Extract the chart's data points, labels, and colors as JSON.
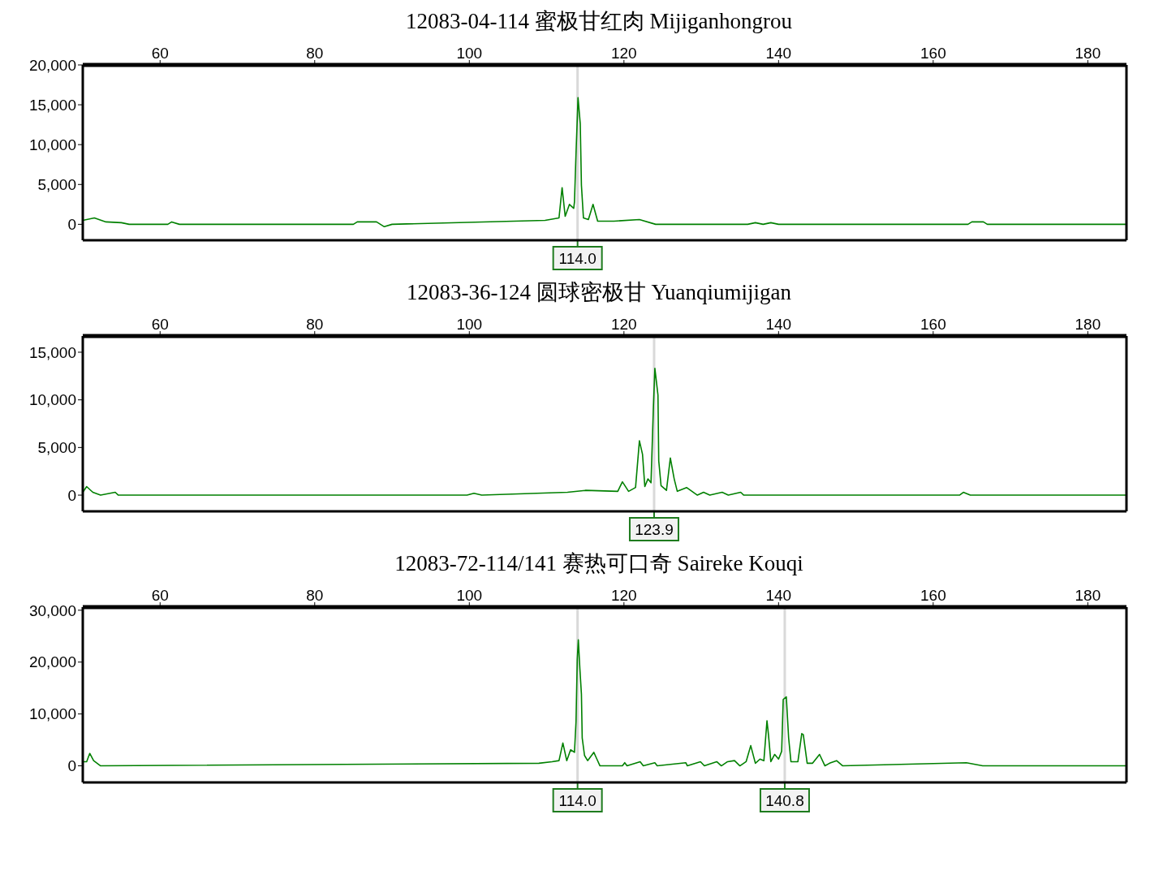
{
  "chart_data": [
    {
      "type": "line",
      "title": "12083-04-114 蜜极甘红肉  Mijiganhongrou",
      "x": [
        50,
        51.5,
        53,
        55,
        56,
        61,
        61.5,
        62.5,
        85,
        85.5,
        88,
        89,
        90,
        109.8,
        111.6,
        112.0,
        112.4,
        112.95,
        113.5,
        113.6,
        113.8,
        114.06,
        114.35,
        114.5,
        114.76,
        115.4,
        116.0,
        116.6,
        118.7,
        122.0,
        124.1,
        136,
        137,
        138,
        139,
        140,
        164.5,
        165,
        166.5,
        167,
        185
      ],
      "series": [
        {
          "color": "#008000",
          "values": [
            500,
            800,
            300,
            200,
            0,
            0,
            300,
            0,
            0,
            300,
            300,
            -300,
            0,
            500,
            800,
            4600,
            1000,
            2500,
            2000,
            2800,
            8900,
            15900,
            12600,
            4900,
            800,
            600,
            2500,
            400,
            400,
            600,
            0,
            0,
            200,
            0,
            200,
            0,
            0,
            300,
            300,
            0,
            0
          ]
        }
      ],
      "xlim": [
        50,
        185
      ],
      "xticks": [
        60,
        80,
        100,
        120,
        140,
        160,
        180
      ],
      "ylim": [
        -2000,
        20000
      ],
      "yticks": [
        {
          "value": 0,
          "label": "0"
        },
        {
          "value": 5000,
          "label": "5,000"
        },
        {
          "value": 10000,
          "label": "10,000"
        },
        {
          "value": 15000,
          "label": "15,000"
        },
        {
          "value": 20000,
          "label": "20,000"
        }
      ],
      "ref_lines": [
        {
          "axis": "x",
          "value": 114.0,
          "label": "114.0",
          "color": "#d9d9d9"
        }
      ]
    },
    {
      "type": "line",
      "title": "12083-36-124 圆球密极甘  Yuanqiumijigan",
      "x": [
        50,
        50.5,
        51.3,
        52.3,
        54.2,
        54.6,
        99.7,
        100.6,
        101.6,
        112.7,
        115.0,
        119.2,
        119.8,
        120.6,
        121.5,
        122.0,
        122.4,
        122.7,
        123.1,
        123.5,
        123.8,
        124.0,
        124.4,
        124.5,
        124.8,
        125.5,
        126.0,
        126.5,
        126.9,
        128.1,
        129.5,
        130.3,
        131.1,
        132.7,
        133.5,
        135.1,
        135.5,
        163.4,
        163.9,
        164.8,
        185
      ],
      "series": [
        {
          "color": "#008000",
          "values": [
            300,
            900,
            300,
            0,
            300,
            0,
            0,
            200,
            0,
            300,
            500,
            400,
            1400,
            400,
            800,
            5700,
            4300,
            900,
            1700,
            1300,
            9000,
            13300,
            10500,
            3600,
            1000,
            500,
            3900,
            1700,
            400,
            800,
            0,
            300,
            0,
            300,
            0,
            300,
            0,
            0,
            300,
            0,
            0
          ]
        }
      ],
      "xlim": [
        50,
        185
      ],
      "xticks": [
        60,
        80,
        100,
        120,
        140,
        160,
        180
      ],
      "ylim": [
        -1700,
        16700
      ],
      "yticks": [
        {
          "value": 0,
          "label": "0"
        },
        {
          "value": 5000,
          "label": "5,000"
        },
        {
          "value": 10000,
          "label": "10,000"
        },
        {
          "value": 15000,
          "label": "15,000"
        }
      ],
      "ref_lines": [
        {
          "axis": "x",
          "value": 123.9,
          "label": "123.9",
          "color": "#d9d9d9"
        }
      ]
    },
    {
      "type": "line",
      "title": "12083-72-114/141  赛热可口奇  Saireke Kouqi",
      "x": [
        50.0,
        50.5,
        50.9,
        51.4,
        52.3,
        109.0,
        110.7,
        111.6,
        112.1,
        112.6,
        113.1,
        113.6,
        113.8,
        113.96,
        114.1,
        114.3,
        114.5,
        114.6,
        114.9,
        115.3,
        116.1,
        116.5,
        116.9,
        119.8,
        120.1,
        120.4,
        122.1,
        122.5,
        124.0,
        124.3,
        128.0,
        128.2,
        129.9,
        130.4,
        132.0,
        132.6,
        133.4,
        134.3,
        135.0,
        135.8,
        136.4,
        137.0,
        137.6,
        138.1,
        138.5,
        138.7,
        139.0,
        139.5,
        140.0,
        140.4,
        140.6,
        141.0,
        141.3,
        141.6,
        142.5,
        143.0,
        143.2,
        143.7,
        144.4,
        145.3,
        146.0,
        146.6,
        147.5,
        148.3,
        164.3,
        166.4,
        185
      ],
      "series": [
        {
          "color": "#008000",
          "values": [
            800,
            800,
            2400,
            1000,
            0,
            500,
            800,
            1000,
            4400,
            1000,
            3100,
            2600,
            8500,
            20500,
            24300,
            18700,
            13800,
            5400,
            2000,
            1000,
            2600,
            1300,
            0,
            0,
            600,
            0,
            800,
            0,
            600,
            0,
            600,
            0,
            800,
            0,
            800,
            0,
            800,
            1000,
            0,
            800,
            3900,
            500,
            1300,
            1000,
            8700,
            5900,
            800,
            2200,
            1300,
            2800,
            12800,
            13300,
            5400,
            800,
            800,
            6200,
            6000,
            500,
            500,
            2200,
            0,
            500,
            1000,
            0,
            600,
            0,
            0
          ]
        }
      ],
      "xlim": [
        50,
        185
      ],
      "xticks": [
        60,
        80,
        100,
        120,
        140,
        160,
        180
      ],
      "ylim": [
        -3200,
        30600
      ],
      "yticks": [
        {
          "value": 0,
          "label": "0"
        },
        {
          "value": 10000,
          "label": "10,000"
        },
        {
          "value": 20000,
          "label": "20,000"
        },
        {
          "value": 30000,
          "label": "30,000"
        }
      ],
      "ref_lines": [
        {
          "axis": "x",
          "value": 114.0,
          "label": "114.0",
          "color": "#d9d9d9"
        },
        {
          "axis": "x",
          "value": 140.8,
          "label": "140.8",
          "color": "#d9d9d9"
        }
      ]
    }
  ]
}
